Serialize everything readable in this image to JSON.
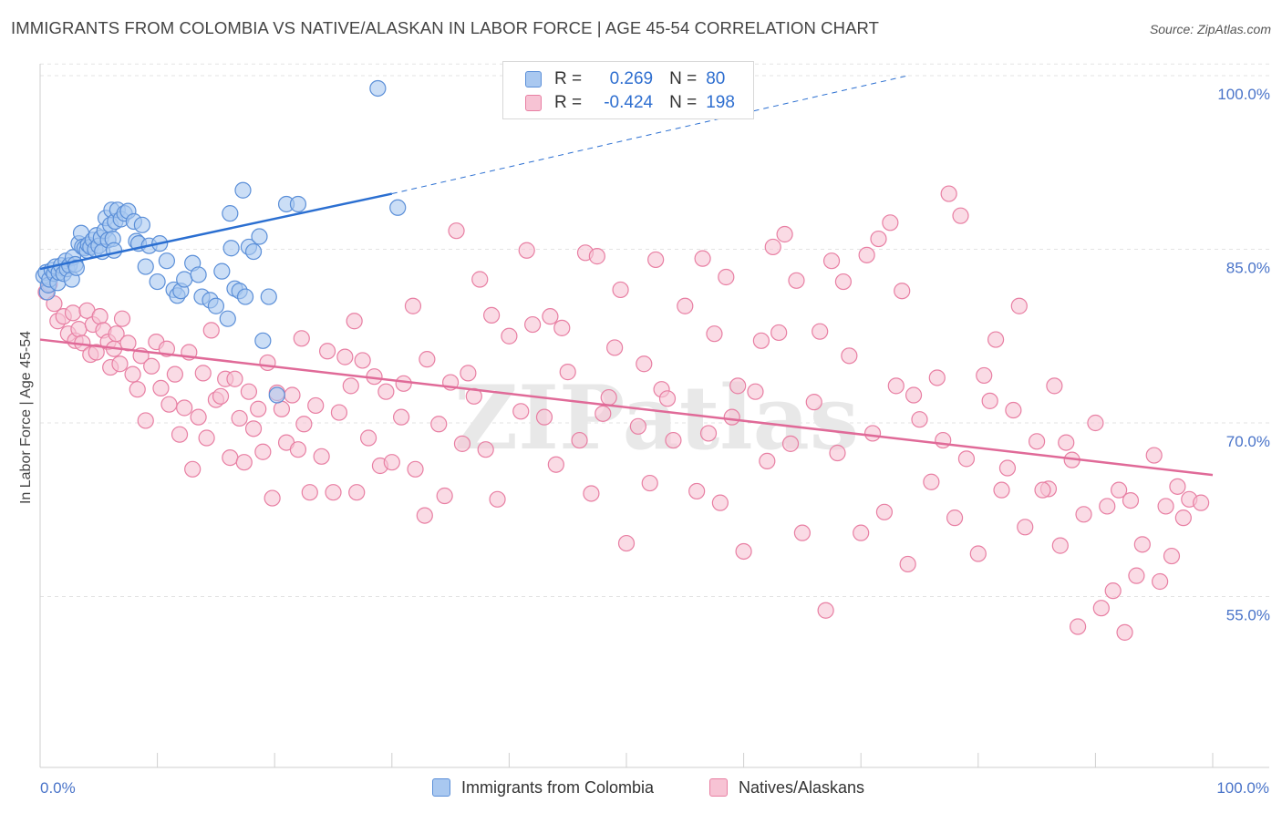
{
  "title": "IMMIGRANTS FROM COLOMBIA VS NATIVE/ALASKAN IN LABOR FORCE | AGE 45-54 CORRELATION CHART",
  "source": "Source: ZipAtlas.com",
  "watermark": "ZIPatlas",
  "legend_top": {
    "rows": [
      {
        "r_label": "R =",
        "r_value": "0.269",
        "n_label": "N =",
        "n_value": "80"
      },
      {
        "r_label": "R =",
        "r_value": "-0.424",
        "n_label": "N =",
        "n_value": "198"
      }
    ]
  },
  "legend_bottom": {
    "items": [
      {
        "label": "Immigrants from Colombia"
      },
      {
        "label": "Natives/Alaskans"
      }
    ]
  },
  "colors": {
    "blue_fill": "#a9c8f0",
    "blue_stroke": "#5b8fd8",
    "blue_line": "#2b6fd1",
    "pink_fill": "#f7c3d4",
    "pink_stroke": "#e87fa3",
    "pink_line": "#e06a98",
    "tick_text": "#4a74c9",
    "grid": "#e3e3e3"
  },
  "chart_data": {
    "type": "scatter",
    "title": "IMMIGRANTS FROM COLOMBIA VS NATIVE/ALASKAN IN LABOR FORCE | AGE 45-54 CORRELATION CHART",
    "xlabel": "",
    "ylabel": "In Labor Force | Age 45-54",
    "xlim": [
      0,
      100
    ],
    "ylim": [
      39,
      101
    ],
    "x_tick_labels": [
      "0.0%",
      "100.0%"
    ],
    "y_ticks": [
      55,
      70,
      85,
      100
    ],
    "y_tick_labels": [
      "55.0%",
      "70.0%",
      "85.0%",
      "100.0%"
    ],
    "grid": true,
    "legend_position": "top-center",
    "series": [
      {
        "name": "Immigrants from Colombia",
        "color": "#a9c8f0",
        "trend": {
          "x": [
            0,
            30
          ],
          "y": [
            83.3,
            89.8
          ],
          "dashed_extension": {
            "x": [
              30,
              74
            ],
            "y": [
              89.8,
              100
            ]
          }
        },
        "points": [
          [
            0.3,
            82.7
          ],
          [
            0.5,
            83.0
          ],
          [
            0.6,
            81.3
          ],
          [
            0.7,
            81.9
          ],
          [
            0.8,
            82.4
          ],
          [
            1.0,
            83.2
          ],
          [
            1.2,
            82.9
          ],
          [
            1.3,
            83.5
          ],
          [
            1.5,
            82.1
          ],
          [
            1.6,
            83.0
          ],
          [
            1.8,
            83.6
          ],
          [
            2.0,
            82.9
          ],
          [
            2.2,
            84.0
          ],
          [
            2.3,
            83.3
          ],
          [
            2.5,
            83.6
          ],
          [
            2.7,
            82.4
          ],
          [
            2.8,
            84.3
          ],
          [
            3.0,
            83.7
          ],
          [
            3.1,
            83.4
          ],
          [
            3.3,
            85.5
          ],
          [
            3.5,
            86.4
          ],
          [
            3.6,
            85.2
          ],
          [
            3.8,
            85.1
          ],
          [
            4.0,
            84.9
          ],
          [
            4.1,
            85.4
          ],
          [
            4.3,
            85.2
          ],
          [
            4.5,
            85.8
          ],
          [
            4.7,
            85.0
          ],
          [
            4.8,
            86.2
          ],
          [
            5.0,
            85.3
          ],
          [
            5.2,
            86.0
          ],
          [
            5.3,
            84.8
          ],
          [
            5.5,
            86.6
          ],
          [
            5.6,
            87.7
          ],
          [
            5.8,
            85.8
          ],
          [
            6.0,
            87.1
          ],
          [
            6.1,
            88.4
          ],
          [
            6.2,
            85.9
          ],
          [
            6.3,
            84.9
          ],
          [
            6.4,
            87.4
          ],
          [
            6.6,
            88.4
          ],
          [
            6.9,
            87.6
          ],
          [
            7.2,
            88.1
          ],
          [
            7.5,
            88.3
          ],
          [
            8.0,
            87.4
          ],
          [
            8.2,
            85.7
          ],
          [
            8.4,
            85.5
          ],
          [
            8.7,
            87.1
          ],
          [
            9.0,
            83.5
          ],
          [
            9.3,
            85.3
          ],
          [
            10.0,
            82.2
          ],
          [
            10.2,
            85.5
          ],
          [
            10.8,
            84.0
          ],
          [
            11.4,
            81.5
          ],
          [
            11.7,
            81.0
          ],
          [
            12.0,
            81.4
          ],
          [
            12.3,
            82.4
          ],
          [
            13.0,
            83.8
          ],
          [
            13.5,
            82.8
          ],
          [
            13.8,
            80.9
          ],
          [
            14.5,
            80.6
          ],
          [
            15.0,
            80.1
          ],
          [
            15.5,
            83.1
          ],
          [
            16.0,
            79.0
          ],
          [
            16.2,
            88.1
          ],
          [
            16.3,
            85.1
          ],
          [
            16.6,
            81.6
          ],
          [
            17.0,
            81.4
          ],
          [
            17.3,
            90.1
          ],
          [
            17.5,
            80.9
          ],
          [
            17.8,
            85.2
          ],
          [
            18.2,
            84.8
          ],
          [
            18.7,
            86.1
          ],
          [
            19.0,
            77.1
          ],
          [
            19.5,
            80.9
          ],
          [
            20.2,
            72.4
          ],
          [
            21.0,
            88.9
          ],
          [
            22.0,
            88.9
          ],
          [
            28.8,
            98.9
          ],
          [
            30.5,
            88.6
          ]
        ]
      },
      {
        "name": "Natives/Alaskans",
        "color": "#f7c3d4",
        "trend": {
          "x": [
            0,
            100
          ],
          "y": [
            77.2,
            65.5
          ]
        },
        "points": [
          [
            0.5,
            81.3
          ],
          [
            0.8,
            82.0
          ],
          [
            1.2,
            80.3
          ],
          [
            1.5,
            78.8
          ],
          [
            2.0,
            79.2
          ],
          [
            2.4,
            77.7
          ],
          [
            2.8,
            79.5
          ],
          [
            3.0,
            77.1
          ],
          [
            3.3,
            78.1
          ],
          [
            3.6,
            76.9
          ],
          [
            4.0,
            79.7
          ],
          [
            4.3,
            75.9
          ],
          [
            4.5,
            78.5
          ],
          [
            4.8,
            76.1
          ],
          [
            5.1,
            79.2
          ],
          [
            5.4,
            78.0
          ],
          [
            5.8,
            77.0
          ],
          [
            6.0,
            74.8
          ],
          [
            6.3,
            76.4
          ],
          [
            6.5,
            77.7
          ],
          [
            6.8,
            75.1
          ],
          [
            7.0,
            79.0
          ],
          [
            7.5,
            76.9
          ],
          [
            7.9,
            74.2
          ],
          [
            8.3,
            72.9
          ],
          [
            8.6,
            75.8
          ],
          [
            9.0,
            70.2
          ],
          [
            9.5,
            74.9
          ],
          [
            9.9,
            77.0
          ],
          [
            10.3,
            73.0
          ],
          [
            10.8,
            76.4
          ],
          [
            11.0,
            71.6
          ],
          [
            11.5,
            74.2
          ],
          [
            11.9,
            69.0
          ],
          [
            12.3,
            71.3
          ],
          [
            12.7,
            76.1
          ],
          [
            13.0,
            66.0
          ],
          [
            13.5,
            70.5
          ],
          [
            13.9,
            74.3
          ],
          [
            14.2,
            68.7
          ],
          [
            14.6,
            78.0
          ],
          [
            15.0,
            72.0
          ],
          [
            15.4,
            72.3
          ],
          [
            15.8,
            73.8
          ],
          [
            16.2,
            67.0
          ],
          [
            16.6,
            73.8
          ],
          [
            17.0,
            70.4
          ],
          [
            17.4,
            66.6
          ],
          [
            17.8,
            72.7
          ],
          [
            18.2,
            69.5
          ],
          [
            18.6,
            71.2
          ],
          [
            19.0,
            67.5
          ],
          [
            19.4,
            75.2
          ],
          [
            19.8,
            63.5
          ],
          [
            20.2,
            72.6
          ],
          [
            20.6,
            71.2
          ],
          [
            21.0,
            68.3
          ],
          [
            21.5,
            72.4
          ],
          [
            22.0,
            67.7
          ],
          [
            22.5,
            69.9
          ],
          [
            23.0,
            64.0
          ],
          [
            23.5,
            71.5
          ],
          [
            24.0,
            67.1
          ],
          [
            24.5,
            76.2
          ],
          [
            25.0,
            64.0
          ],
          [
            25.5,
            70.9
          ],
          [
            26.0,
            75.7
          ],
          [
            26.5,
            73.2
          ],
          [
            27.0,
            64.0
          ],
          [
            27.5,
            75.4
          ],
          [
            28.0,
            68.7
          ],
          [
            28.5,
            74.0
          ],
          [
            29.0,
            66.3
          ],
          [
            29.5,
            72.7
          ],
          [
            30.0,
            66.6
          ],
          [
            31.0,
            73.4
          ],
          [
            32.0,
            66.0
          ],
          [
            33.0,
            75.5
          ],
          [
            34.0,
            69.9
          ],
          [
            35.0,
            73.5
          ],
          [
            36.0,
            68.2
          ],
          [
            37.0,
            72.3
          ],
          [
            38.0,
            67.7
          ],
          [
            39.0,
            63.4
          ],
          [
            40.0,
            77.5
          ],
          [
            41.0,
            71.0
          ],
          [
            42.0,
            78.5
          ],
          [
            43.0,
            70.5
          ],
          [
            44.0,
            66.4
          ],
          [
            45.0,
            74.4
          ],
          [
            46.0,
            68.5
          ],
          [
            47.0,
            63.9
          ],
          [
            48.0,
            70.8
          ],
          [
            49.0,
            76.5
          ],
          [
            50.0,
            59.6
          ],
          [
            51.0,
            69.7
          ],
          [
            52.0,
            64.8
          ],
          [
            53.0,
            72.9
          ],
          [
            54.0,
            68.5
          ],
          [
            55.0,
            80.1
          ],
          [
            56.0,
            64.1
          ],
          [
            57.0,
            69.1
          ],
          [
            58.0,
            63.1
          ],
          [
            59.0,
            70.5
          ],
          [
            60.0,
            58.9
          ],
          [
            61.0,
            72.7
          ],
          [
            62.0,
            66.7
          ],
          [
            63.0,
            77.8
          ],
          [
            64.0,
            68.2
          ],
          [
            65.0,
            60.5
          ],
          [
            66.0,
            71.8
          ],
          [
            67.0,
            53.8
          ],
          [
            68.0,
            67.4
          ],
          [
            69.0,
            75.8
          ],
          [
            70.0,
            60.5
          ],
          [
            71.0,
            69.1
          ],
          [
            72.0,
            62.3
          ],
          [
            73.0,
            73.2
          ],
          [
            74.0,
            57.8
          ],
          [
            75.0,
            70.3
          ],
          [
            76.0,
            64.9
          ],
          [
            77.0,
            68.5
          ],
          [
            78.0,
            61.8
          ],
          [
            79.0,
            66.9
          ],
          [
            80.0,
            58.7
          ],
          [
            81.0,
            71.9
          ],
          [
            82.0,
            64.2
          ],
          [
            83.0,
            71.1
          ],
          [
            84.0,
            61.0
          ],
          [
            85.0,
            68.4
          ],
          [
            86.0,
            64.3
          ],
          [
            87.0,
            59.4
          ],
          [
            88.0,
            66.8
          ],
          [
            89.0,
            62.1
          ],
          [
            90.0,
            70.0
          ],
          [
            91.0,
            62.8
          ],
          [
            92.0,
            64.2
          ],
          [
            93.0,
            63.3
          ],
          [
            94.0,
            59.5
          ],
          [
            95.0,
            67.2
          ],
          [
            96.0,
            62.8
          ],
          [
            97.0,
            64.5
          ],
          [
            98.0,
            63.4
          ],
          [
            99.0,
            63.1
          ],
          [
            22.3,
            77.3
          ],
          [
            26.8,
            78.8
          ],
          [
            30.8,
            70.5
          ],
          [
            31.8,
            80.1
          ],
          [
            32.8,
            62.0
          ],
          [
            34.5,
            63.7
          ],
          [
            35.5,
            86.6
          ],
          [
            36.5,
            74.3
          ],
          [
            37.5,
            82.4
          ],
          [
            38.5,
            79.3
          ],
          [
            41.5,
            84.9
          ],
          [
            43.5,
            79.2
          ],
          [
            44.5,
            78.2
          ],
          [
            46.5,
            84.7
          ],
          [
            47.5,
            84.4
          ],
          [
            48.5,
            72.2
          ],
          [
            49.5,
            81.5
          ],
          [
            51.5,
            75.1
          ],
          [
            52.5,
            84.1
          ],
          [
            53.5,
            72.1
          ],
          [
            56.5,
            84.2
          ],
          [
            57.5,
            77.7
          ],
          [
            58.5,
            82.6
          ],
          [
            59.5,
            73.2
          ],
          [
            61.5,
            77.1
          ],
          [
            62.5,
            85.2
          ],
          [
            63.5,
            86.3
          ],
          [
            64.5,
            82.3
          ],
          [
            66.5,
            77.9
          ],
          [
            67.5,
            84.0
          ],
          [
            68.5,
            82.2
          ],
          [
            70.5,
            84.5
          ],
          [
            71.5,
            85.9
          ],
          [
            72.5,
            87.3
          ],
          [
            73.5,
            81.4
          ],
          [
            74.5,
            72.4
          ],
          [
            76.5,
            73.9
          ],
          [
            77.5,
            89.8
          ],
          [
            78.5,
            87.9
          ],
          [
            80.5,
            74.1
          ],
          [
            81.5,
            77.2
          ],
          [
            82.5,
            66.1
          ],
          [
            83.5,
            80.1
          ],
          [
            85.5,
            64.2
          ],
          [
            86.5,
            73.2
          ],
          [
            87.5,
            68.3
          ],
          [
            88.5,
            52.4
          ],
          [
            90.5,
            54.0
          ],
          [
            91.5,
            55.5
          ],
          [
            92.5,
            51.9
          ],
          [
            93.5,
            56.8
          ],
          [
            95.5,
            56.3
          ],
          [
            96.5,
            58.5
          ],
          [
            97.5,
            61.8
          ]
        ]
      }
    ]
  }
}
